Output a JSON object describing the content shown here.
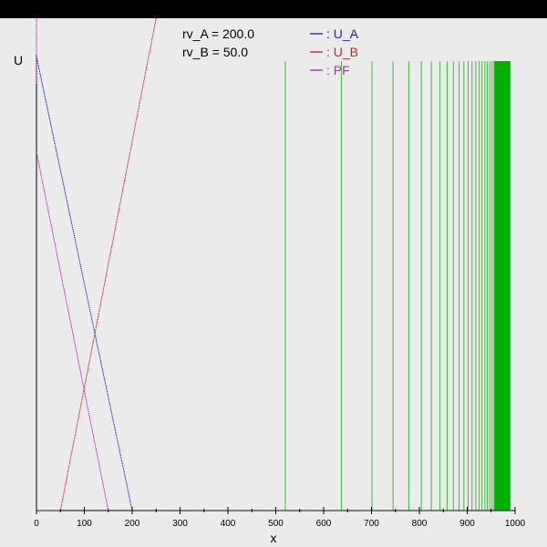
{
  "chart_data": {
    "type": "line",
    "title": "",
    "xlabel": "x",
    "ylabel": "U",
    "xlim": [
      0,
      1000
    ],
    "ylim": [
      0,
      100
    ],
    "x_ticks": [
      0,
      100,
      200,
      300,
      400,
      500,
      600,
      700,
      800,
      900,
      1000
    ],
    "x_minor_step": 50,
    "grid": false,
    "legend_position": "top-center",
    "params": [
      {
        "label": "rv_A = 200.0"
      },
      {
        "label": "rv_B = 50.0"
      }
    ],
    "series": [
      {
        "name": ": U_A",
        "color": "#2222bb",
        "style": "dotted",
        "points": [
          [
            0,
            100
          ],
          [
            200,
            0
          ],
          [
            990,
            0
          ]
        ]
      },
      {
        "name": ": U_B",
        "color": "#cc2222",
        "style": "dotted",
        "points": [
          [
            0,
            0
          ],
          [
            50,
            0
          ],
          [
            262,
            115
          ]
        ]
      },
      {
        "name": ": PF",
        "color": "#bb22bb",
        "style": "dotted",
        "points": [
          [
            0,
            94
          ],
          [
            0,
            115
          ]
        ]
      },
      {
        "name": "",
        "color": "#bb22bb",
        "style": "dotted",
        "points": [
          [
            0,
            79
          ],
          [
            150,
            0
          ]
        ]
      }
    ],
    "legend_colors": [
      "#2222bb",
      "#cc2222",
      "#bb22bb"
    ],
    "vlines": {
      "color": "#00b000",
      "x": [
        520,
        637,
        701,
        745,
        778,
        804,
        825,
        843,
        858,
        871,
        883,
        893,
        902,
        910,
        918,
        925,
        931,
        937,
        942,
        947,
        952,
        956,
        960,
        964,
        967,
        970,
        973,
        976,
        979,
        981,
        983,
        985,
        987,
        989
      ],
      "y_top": 99,
      "dense_from": 957,
      "dense_to": 990
    }
  }
}
